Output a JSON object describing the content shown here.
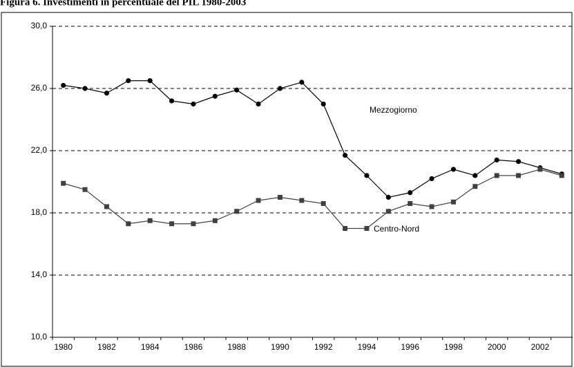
{
  "chart_data": {
    "type": "line",
    "title": "Figura 6. Investimenti in percentuale del PIL 1980-2003",
    "categories": [
      "1980",
      null,
      "1982",
      null,
      "1984",
      null,
      "1986",
      null,
      "1988",
      null,
      "1990",
      null,
      "1992",
      null,
      "1994",
      null,
      "1996",
      null,
      "1998",
      null,
      "2000",
      null,
      "2002",
      null
    ],
    "series": [
      {
        "name": "Mezzogiorno",
        "color": "#000000",
        "marker": "circle",
        "values": [
          26.2,
          26.0,
          25.7,
          26.5,
          26.5,
          25.2,
          25.0,
          25.5,
          25.9,
          25.0,
          26.0,
          26.4,
          25.0,
          21.7,
          20.4,
          19.0,
          19.3,
          20.2,
          20.8,
          20.4,
          21.4,
          21.3,
          20.9,
          20.5
        ]
      },
      {
        "name": "Centro-Nord",
        "color": "#404040",
        "marker": "square",
        "values": [
          19.9,
          19.5,
          18.4,
          17.3,
          17.5,
          17.3,
          17.3,
          17.5,
          18.1,
          18.8,
          19.0,
          18.8,
          18.6,
          17.0,
          17.0,
          18.1,
          18.6,
          18.4,
          18.7,
          19.7,
          20.4,
          20.4,
          20.8,
          20.4
        ]
      }
    ],
    "ylim": [
      10,
      30
    ],
    "yticks": [
      {
        "value": 10,
        "label": "10,0"
      },
      {
        "value": 14,
        "label": "14,0"
      },
      {
        "value": 18,
        "label": "18,0"
      },
      {
        "value": 22,
        "label": "22,0"
      },
      {
        "value": 26,
        "label": "26,0"
      },
      {
        "value": 30,
        "label": "30,0"
      }
    ],
    "grid": true
  }
}
